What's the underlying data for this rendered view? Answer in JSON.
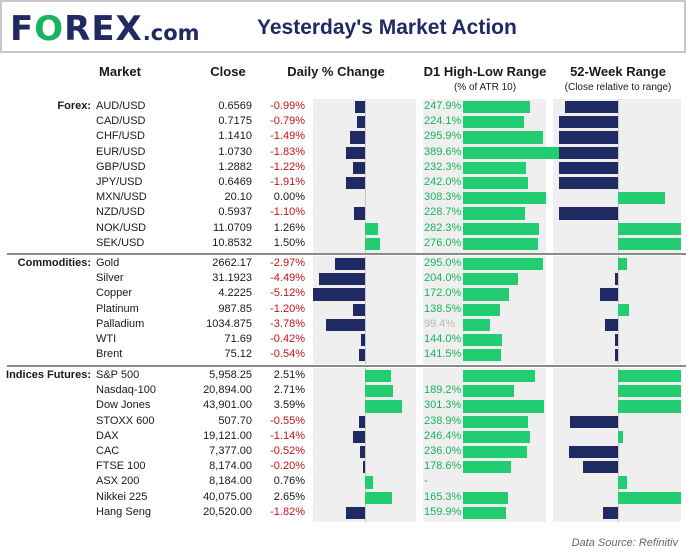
{
  "header": {
    "logo_pre": "F",
    "logo_o": "O",
    "logo_post": "REX",
    "logo_domain": ".com",
    "title": "Yesterday's Market Action"
  },
  "columns": {
    "market": "Market",
    "close": "Close",
    "change": "Daily % Change",
    "range": "D1 High-Low Range",
    "range_sub": "(% of ATR 10)",
    "week52": "52-Week Range",
    "week52_sub": "(Close relative to range)"
  },
  "colors": {
    "positive": "#22cc71",
    "negative": "#1f2a63",
    "negative_text": "#c0141b",
    "positive_text": "#17b35f",
    "brand_navy": "#1f2a63",
    "brand_green": "#17b35f"
  },
  "source": "Data Source: Refinitiv",
  "chart_data": {
    "type": "table",
    "groups": [
      {
        "name": "Forex:",
        "rows": [
          {
            "market": "AUD/USD",
            "close": "0.6569",
            "change_label": "-0.99%",
            "change": -0.99,
            "range_label": "247.9%",
            "range": 247.9,
            "w52": -0.42
          },
          {
            "market": "CAD/USD",
            "close": "0.7175",
            "change_label": "-0.79%",
            "change": -0.79,
            "range_label": "224.1%",
            "range": 224.1,
            "w52": -0.47
          },
          {
            "market": "CHF/USD",
            "close": "1.1410",
            "change_label": "-1.49%",
            "change": -1.49,
            "range_label": "295.9%",
            "range": 295.9,
            "w52": -0.47
          },
          {
            "market": "EUR/USD",
            "close": "1.0730",
            "change_label": "-1.83%",
            "change": -1.83,
            "range_label": "389.6%",
            "range": 389.6,
            "w52": -0.47
          },
          {
            "market": "GBP/USD",
            "close": "1.2882",
            "change_label": "-1.22%",
            "change": -1.22,
            "range_label": "232.3%",
            "range": 232.3,
            "w52": -0.47
          },
          {
            "market": "JPY/USD",
            "close": "0.6469",
            "change_label": "-1.91%",
            "change": -1.91,
            "range_label": "242.0%",
            "range": 242.0,
            "w52": -0.47
          },
          {
            "market": "MXN/USD",
            "close": "20.10",
            "change_label": "0.00%",
            "change": 0.0,
            "range_label": "308.3%",
            "range": 308.3,
            "w52": 0.37
          },
          {
            "market": "NZD/USD",
            "close": "0.5937",
            "change_label": "-1.10%",
            "change": -1.1,
            "range_label": "228.7%",
            "range": 228.7,
            "w52": -0.47
          },
          {
            "market": "NOK/USD",
            "close": "11.0709",
            "change_label": "1.26%",
            "change": 1.26,
            "range_label": "282.3%",
            "range": 282.3,
            "w52": 0.5
          },
          {
            "market": "SEK/USD",
            "close": "10.8532",
            "change_label": "1.50%",
            "change": 1.5,
            "range_label": "276.0%",
            "range": 276.0,
            "w52": 0.5
          }
        ]
      },
      {
        "name": "Commodities:",
        "rows": [
          {
            "market": "Gold",
            "close": "2662.17",
            "change_label": "-2.97%",
            "change": -2.97,
            "range_label": "295.0%",
            "range": 295.0,
            "w52": 0.07
          },
          {
            "market": "Silver",
            "close": "31.1923",
            "change_label": "-4.49%",
            "change": -4.49,
            "range_label": "204.0%",
            "range": 204.0,
            "w52": -0.02
          },
          {
            "market": "Copper",
            "close": "4.2225",
            "change_label": "-5.12%",
            "change": -5.12,
            "range_label": "172.0%",
            "range": 172.0,
            "w52": -0.14
          },
          {
            "market": "Platinum",
            "close": "987.85",
            "change_label": "-1.20%",
            "change": -1.2,
            "range_label": "138.5%",
            "range": 138.5,
            "w52": 0.09
          },
          {
            "market": "Palladium",
            "close": "1034.875",
            "change_label": "-3.78%",
            "change": -3.78,
            "range_label": "99.4%",
            "range": 99.4,
            "w52": -0.1
          },
          {
            "market": "WTI",
            "close": "71.69",
            "change_label": "-0.42%",
            "change": -0.42,
            "range_label": "144.0%",
            "range": 144.0,
            "w52": -0.02
          },
          {
            "market": "Brent",
            "close": "75.12",
            "change_label": "-0.54%",
            "change": -0.54,
            "range_label": "141.5%",
            "range": 141.5,
            "w52": -0.02
          }
        ]
      },
      {
        "name": "Indices Futures:",
        "rows": [
          {
            "market": "S&P 500",
            "close": "5,958.25",
            "change_label": "2.51%",
            "change": 2.51,
            "range_label": "",
            "range": 265.0,
            "w52": 0.5
          },
          {
            "market": "Nasdaq-100",
            "close": "20,894.00",
            "change_label": "2.71%",
            "change": 2.71,
            "range_label": "189.2%",
            "range": 189.2,
            "w52": 0.5
          },
          {
            "market": "Dow Jones",
            "close": "43,901.00",
            "change_label": "3.59%",
            "change": 3.59,
            "range_label": "301.3%",
            "range": 301.3,
            "w52": 0.5
          },
          {
            "market": "STOXX 600",
            "close": "507.70",
            "change_label": "-0.55%",
            "change": -0.55,
            "range_label": "238.9%",
            "range": 238.9,
            "w52": -0.38
          },
          {
            "market": "DAX",
            "close": "19,121.00",
            "change_label": "-1.14%",
            "change": -1.14,
            "range_label": "246.4%",
            "range": 246.4,
            "w52": 0.04
          },
          {
            "market": "CAC",
            "close": "7,377.00",
            "change_label": "-0.52%",
            "change": -0.52,
            "range_label": "236.0%",
            "range": 236.0,
            "w52": -0.39
          },
          {
            "market": "FTSE 100",
            "close": "8,174.00",
            "change_label": "-0.20%",
            "change": -0.2,
            "range_label": "178.6%",
            "range": 178.6,
            "w52": -0.28
          },
          {
            "market": "ASX 200",
            "close": "8,184.00",
            "change_label": "0.76%",
            "change": 0.76,
            "range_label": "-",
            "range": 0,
            "w52": 0.07
          },
          {
            "market": "Nikkei 225",
            "close": "40,075.00",
            "change_label": "2.65%",
            "change": 2.65,
            "range_label": "165.3%",
            "range": 165.3,
            "w52": 0.5
          },
          {
            "market": "Hang Seng",
            "close": "20,520.00",
            "change_label": "-1.82%",
            "change": -1.82,
            "range_label": "159.9%",
            "range": 159.9,
            "w52": -0.12
          }
        ]
      }
    ]
  }
}
